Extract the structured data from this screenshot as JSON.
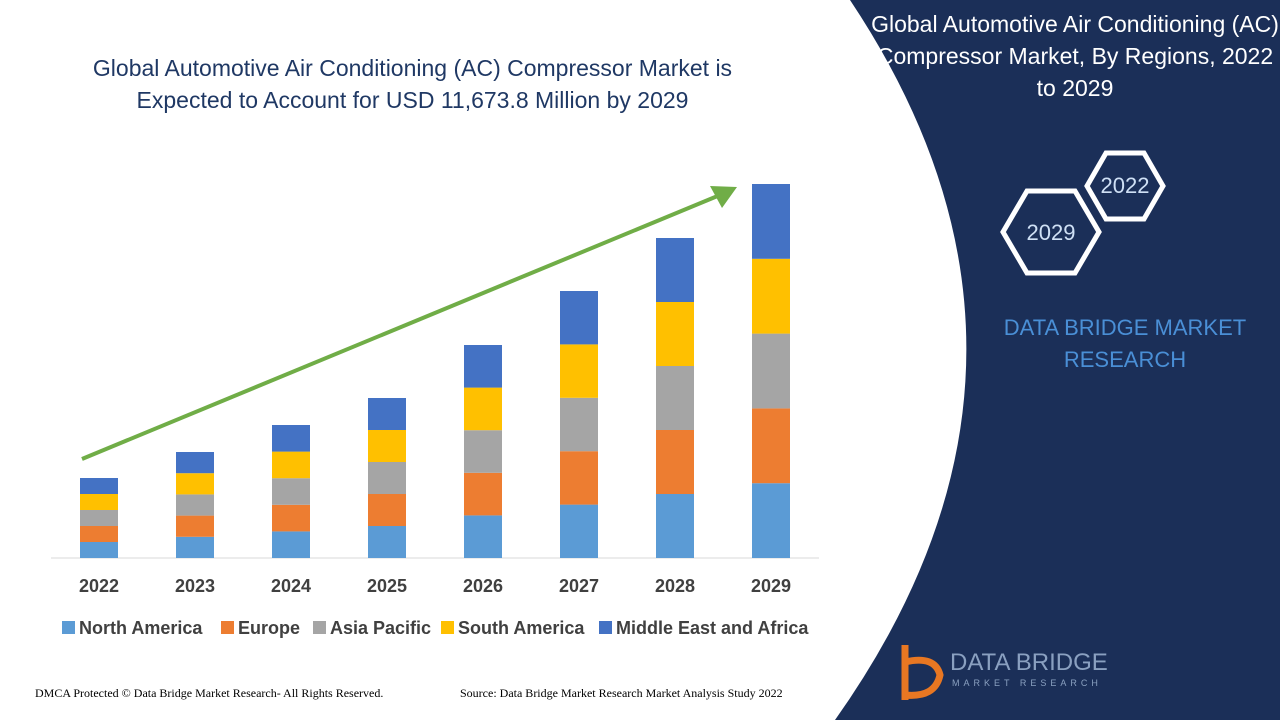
{
  "chart_data": {
    "type": "stacked-bar",
    "title": "Global Automotive Air Conditioning (AC) Compressor Market is Expected to Account for USD 11,673.8 Million by 2029",
    "categories": [
      "2022",
      "2023",
      "2024",
      "2025",
      "2026",
      "2027",
      "2028",
      "2029"
    ],
    "series": [
      {
        "name": "North America",
        "color": "#5b9bd5",
        "values": [
          16,
          21.2,
          26.6,
          32,
          42.6,
          53.4,
          64,
          74.8
        ]
      },
      {
        "name": "Europe",
        "color": "#ed7d31",
        "values": [
          16,
          21.2,
          26.6,
          32,
          42.6,
          53.4,
          64,
          74.8
        ]
      },
      {
        "name": "Asia Pacific",
        "color": "#a5a5a5",
        "values": [
          16,
          21.2,
          26.6,
          32,
          42.6,
          53.4,
          64,
          74.8
        ]
      },
      {
        "name": "South America",
        "color": "#ffc000",
        "values": [
          16,
          21.2,
          26.6,
          32,
          42.6,
          53.4,
          64,
          74.8
        ]
      },
      {
        "name": "Middle East and Africa",
        "color": "#4472c4",
        "values": [
          16,
          21.2,
          26.6,
          32,
          42.6,
          53.4,
          64,
          74.8
        ]
      }
    ],
    "legend": "bottom"
  },
  "sidebar": {
    "title": "Global Automotive Air Conditioning (AC) Compressor Market, By Regions, 2022 to 2029",
    "hexagons": [
      "2022",
      "2029"
    ],
    "brand": "DATA BRIDGE MARKET RESEARCH"
  },
  "logo": {
    "name": "DATA BRIDGE",
    "tagline": "MARKET RESEARCH"
  },
  "footer": {
    "copyright": "DMCA Protected © Data Bridge Market Research- All Rights Reserved.",
    "source": "Source: Data Bridge Market Research Market Analysis Study 2022"
  }
}
